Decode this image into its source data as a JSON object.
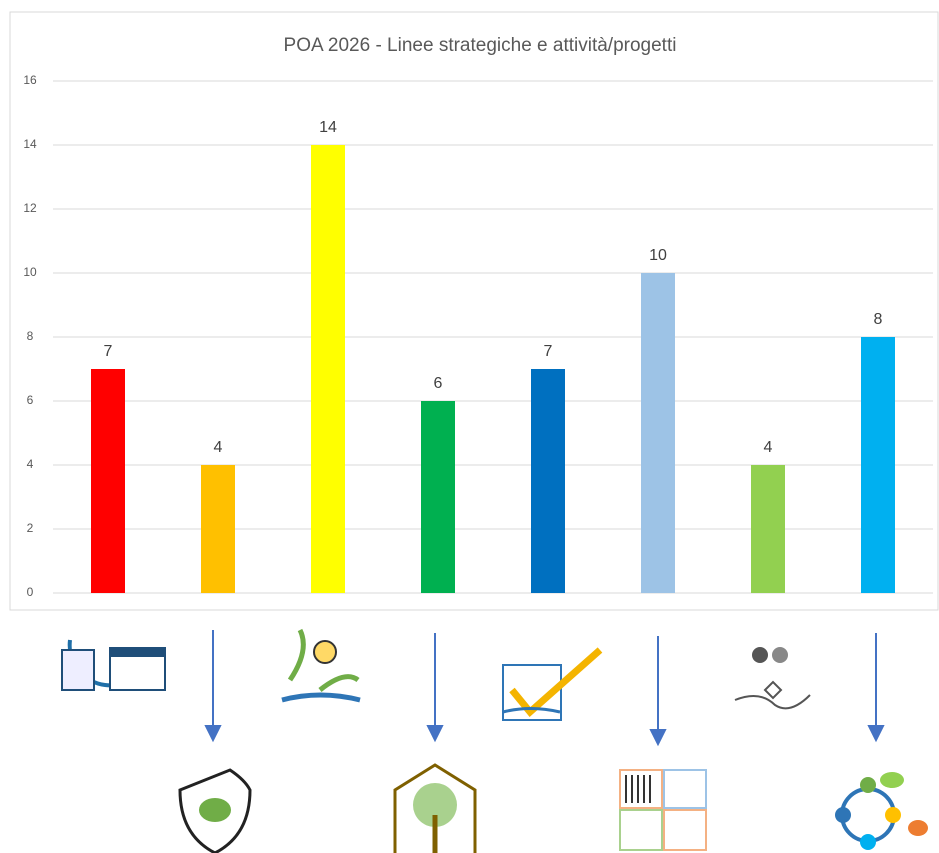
{
  "chart_data": {
    "type": "bar",
    "title": "POA 2026 - Linee strategiche e attività/progetti",
    "categories": [
      null,
      null,
      null,
      null,
      null,
      null,
      null,
      null
    ],
    "values": [
      7,
      4,
      14,
      6,
      7,
      10,
      4,
      8
    ],
    "colors": [
      "#ff0000",
      "#ffc000",
      "#ffff00",
      "#00b050",
      "#0070c0",
      "#9dc3e6",
      "#92d050",
      "#00b0f0"
    ],
    "ylim": [
      0,
      16
    ],
    "yticks": [
      0,
      2,
      4,
      6,
      8,
      10,
      12,
      14,
      16
    ],
    "grid": true
  }
}
